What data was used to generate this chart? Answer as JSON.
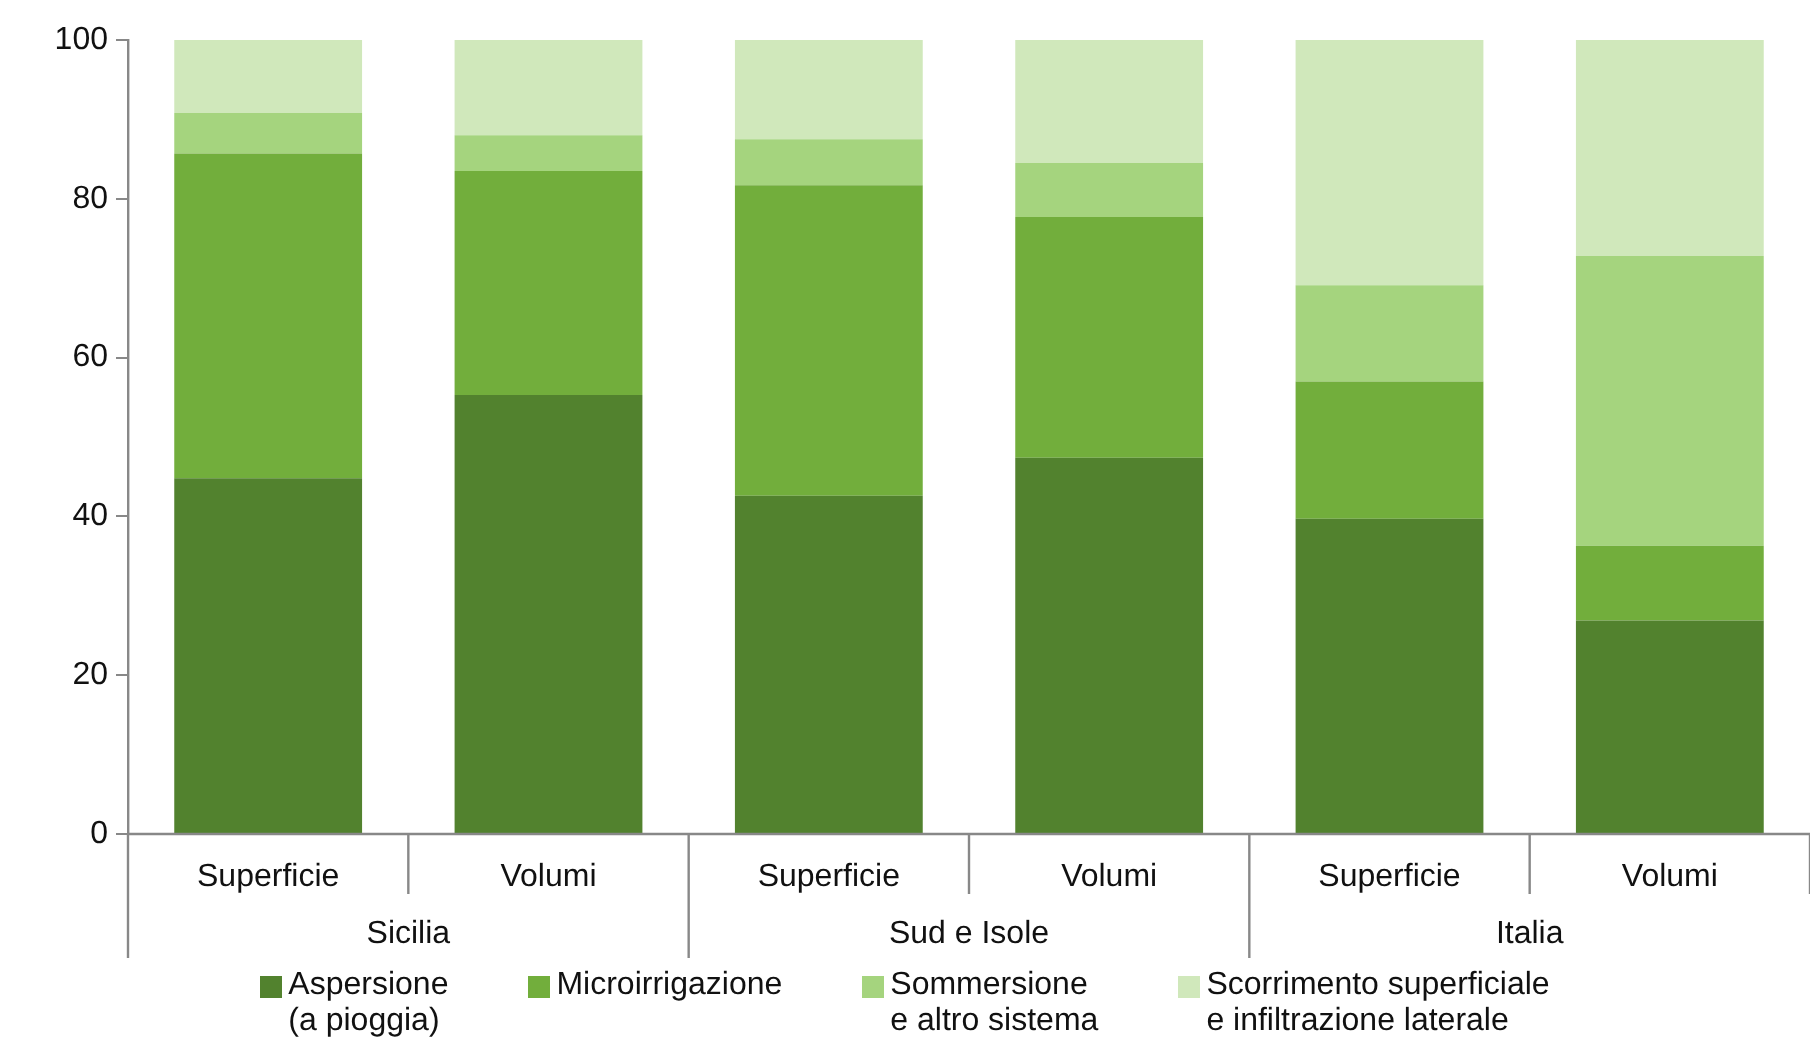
{
  "chart_data": {
    "type": "bar",
    "stacked": true,
    "categories": [
      "Superficie",
      "Volumi",
      "Superficie",
      "Volumi",
      "Superficie",
      "Volumi"
    ],
    "annotations": [
      "Sicilia",
      "Sud e Isole",
      "Italia"
    ],
    "series": [
      {
        "name": "Aspersione\n(a pioggia)",
        "color": "#52822e",
        "values": [
          44.8,
          55.3,
          42.6,
          47.4,
          39.7,
          26.9
        ]
      },
      {
        "name": "Microirrigazione",
        "color": "#72ae3c",
        "values": [
          40.9,
          28.2,
          39.1,
          30.3,
          17.3,
          9.4
        ]
      },
      {
        "name": "Sommersione\ne altro sistema",
        "color": "#a5d47e",
        "values": [
          5.1,
          4.5,
          5.8,
          6.8,
          12.1,
          36.5
        ]
      },
      {
        "name": "Scorrimento superficiale\ne infiltrazione laterale",
        "color": "#d0e8bb",
        "values": [
          9.2,
          12.0,
          12.5,
          15.5,
          30.9,
          27.2
        ]
      }
    ],
    "ylim": [
      0,
      100
    ],
    "yticks": [
      0,
      20,
      40,
      60,
      80,
      100
    ],
    "grid": false,
    "legend": "bottom"
  }
}
